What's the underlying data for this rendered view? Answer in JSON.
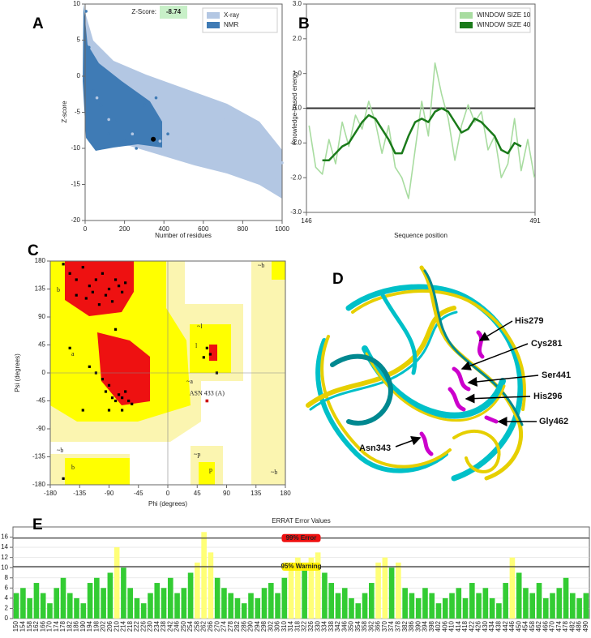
{
  "chart_data": [
    {
      "type": "scatter",
      "panel": "A",
      "xlabel": "Number of residues",
      "ylabel": "Z-score",
      "xlim": [
        0,
        1000
      ],
      "xticks": [
        0,
        200,
        400,
        600,
        800,
        1000
      ],
      "ylim": [
        -20,
        10
      ],
      "yticks": [
        -20,
        -15,
        -10,
        -5,
        0,
        5,
        10
      ],
      "series": [
        {
          "name": "X-ray",
          "color": "#b3c7e3",
          "x": [
            60,
            120,
            240,
            380,
            520,
            650,
            760,
            880,
            960,
            1000,
            700,
            450
          ],
          "values": [
            -3,
            -6,
            -8,
            -9,
            -10,
            -12,
            -13,
            -12,
            -14,
            -12,
            -6,
            -5
          ]
        },
        {
          "name": "NMR",
          "color": "#3f7bb5",
          "x": [
            5,
            20,
            40,
            80,
            120,
            160,
            200,
            260,
            300,
            360,
            420
          ],
          "values": [
            9,
            4,
            -2,
            -4,
            -8,
            -6,
            -9,
            -10,
            -4,
            -3,
            -8
          ]
        }
      ],
      "highlight": {
        "label": "Z-Score:",
        "x": 346,
        "y": -8.74,
        "color": "#000000",
        "box_color": "#c8f0c8"
      },
      "legend": "upper right"
    },
    {
      "type": "line",
      "panel": "B",
      "xlabel": "Sequence position",
      "ylabel": "Knowledge-based energy",
      "xlim": [
        146,
        491
      ],
      "xticks": [
        146,
        491
      ],
      "ylim": [
        -3,
        3
      ],
      "yticks": [
        {
          "value": -3,
          "label": "-3.0"
        },
        {
          "value": -2,
          "label": "-2.0"
        },
        {
          "value": -1,
          "label": "-1.0"
        },
        {
          "value": 0,
          "label": "0.0"
        },
        {
          "value": 1,
          "label": "1.0"
        },
        {
          "value": 2,
          "label": "2.0"
        },
        {
          "value": 3,
          "label": "3.0"
        }
      ],
      "x": [
        150,
        160,
        170,
        180,
        190,
        200,
        210,
        220,
        230,
        240,
        250,
        260,
        270,
        280,
        290,
        300,
        310,
        320,
        330,
        340,
        350,
        360,
        370,
        380,
        390,
        400,
        410,
        420,
        430,
        440,
        450,
        460,
        470,
        480,
        490
      ],
      "series": [
        {
          "name": "WINDOW SIZE 10",
          "color": "#a8dca0",
          "values": [
            -0.5,
            -1.7,
            -1.9,
            -0.9,
            -1.6,
            -0.4,
            -1.1,
            -0.2,
            -0.6,
            0.2,
            -0.4,
            -1.3,
            -0.5,
            -1.7,
            -2.0,
            -2.6,
            -1.2,
            0.2,
            -0.8,
            1.3,
            0.4,
            -0.3,
            -1.5,
            -0.5,
            0.1,
            -0.4,
            -0.1,
            -1.2,
            -0.8,
            -2.0,
            -1.6,
            -0.3,
            -1.8,
            -0.9,
            -2.0
          ]
        },
        {
          "name": "WINDOW SIZE 40",
          "color": "#1a7a1a",
          "values": [
            null,
            null,
            -1.5,
            -1.5,
            -1.3,
            -1.1,
            -1.0,
            -0.7,
            -0.4,
            -0.2,
            -0.3,
            -0.6,
            -0.9,
            -1.3,
            -1.3,
            -0.8,
            -0.4,
            -0.3,
            -0.4,
            -0.1,
            0.0,
            -0.1,
            -0.4,
            -0.7,
            -0.6,
            -0.3,
            -0.4,
            -0.6,
            -0.8,
            -1.2,
            -1.3,
            -1.0,
            -1.1,
            null,
            null
          ]
        }
      ],
      "zero_line": true,
      "legend": "upper right"
    },
    {
      "type": "scatter",
      "panel": "C",
      "xlabel": "Phi (degrees)",
      "ylabel": "Psi (degrees)",
      "xlim": [
        -180,
        180
      ],
      "xticks": [
        -180,
        -135,
        -90,
        -45,
        0,
        45,
        90,
        135,
        180
      ],
      "ylim": [
        -180,
        180
      ],
      "yticks": [
        -180,
        -135,
        -90,
        -45,
        0,
        45,
        90,
        135,
        180
      ],
      "color": "#000000",
      "x": [
        -150,
        -140,
        -130,
        -120,
        -115,
        -110,
        -100,
        -95,
        -90,
        -85,
        -80,
        -75,
        -70,
        -65,
        -125,
        -140,
        -160,
        -105,
        -100,
        -95,
        -90,
        -85,
        -80,
        -75,
        -70,
        -65,
        -60,
        -110,
        -120,
        -55,
        -70,
        -90,
        -130,
        -160,
        60,
        55,
        65,
        75,
        -150,
        -80
      ],
      "values": [
        160,
        150,
        170,
        140,
        130,
        150,
        160,
        125,
        135,
        115,
        150,
        140,
        130,
        145,
        120,
        125,
        175,
        110,
        -10,
        -30,
        -20,
        -40,
        -45,
        -35,
        -40,
        -30,
        -45,
        0,
        10,
        -50,
        -60,
        -60,
        -60,
        -170,
        40,
        25,
        30,
        0,
        40,
        70
      ],
      "regions": [
        "b",
        "a",
        "l",
        "p",
        "~b",
        "~a",
        "~l",
        "~p",
        "~b",
        "~b",
        "b"
      ],
      "outlier": {
        "label": "ASN 433 (A)",
        "x": 60,
        "y": -45,
        "color": "#cc0000"
      }
    },
    {
      "type": "bar",
      "panel": "E",
      "title": "ERRAT Error Values",
      "categories": [
        150,
        154,
        158,
        162,
        166,
        170,
        174,
        178,
        182,
        186,
        190,
        194,
        198,
        202,
        206,
        210,
        214,
        218,
        222,
        226,
        230,
        234,
        238,
        242,
        246,
        250,
        254,
        258,
        262,
        266,
        270,
        274,
        278,
        282,
        286,
        290,
        294,
        298,
        302,
        306,
        310,
        314,
        318,
        322,
        326,
        330,
        334,
        338,
        342,
        346,
        350,
        354,
        358,
        362,
        366,
        370,
        374,
        378,
        382,
        386,
        390,
        394,
        398,
        402,
        406,
        410,
        414,
        418,
        422,
        426,
        430,
        434,
        438,
        442,
        446,
        450,
        454,
        458,
        462,
        466,
        470,
        474,
        478,
        482,
        486,
        490
      ],
      "values": [
        5,
        6,
        4,
        7,
        5,
        3,
        6,
        8,
        5,
        4,
        3,
        7,
        8,
        6,
        9,
        14,
        10,
        6,
        4,
        3,
        5,
        7,
        6,
        8,
        5,
        6,
        9,
        11,
        17,
        13,
        8,
        6,
        5,
        4,
        3,
        5,
        4,
        6,
        7,
        5,
        8,
        11,
        12,
        10,
        12,
        13,
        9,
        7,
        5,
        6,
        4,
        3,
        5,
        7,
        11,
        12,
        10,
        11,
        6,
        5,
        4,
        6,
        5,
        3,
        4,
        5,
        6,
        4,
        7,
        5,
        6,
        4,
        3,
        7,
        12,
        9,
        6,
        5,
        7,
        4,
        5,
        6,
        8,
        5,
        4,
        5
      ],
      "color": "#33cc33",
      "warn_color": "#ffff77",
      "ylim": [
        0,
        18
      ],
      "yticks": [
        0,
        2,
        4,
        6,
        8,
        10,
        12,
        14,
        16
      ],
      "grid": true,
      "thresholds": [
        {
          "label": "99% Error",
          "value": 15.8,
          "color": "#ee1111",
          "text_color": "#ffffff"
        },
        {
          "label": "95% Warning",
          "value": 10.2,
          "color": "#ffee00",
          "text_color": "#000000"
        }
      ]
    }
  ],
  "structure": {
    "panel": "D",
    "labels": [
      "His279",
      "Cys281",
      "Ser441",
      "His296",
      "Gly462",
      "Asn343"
    ]
  }
}
